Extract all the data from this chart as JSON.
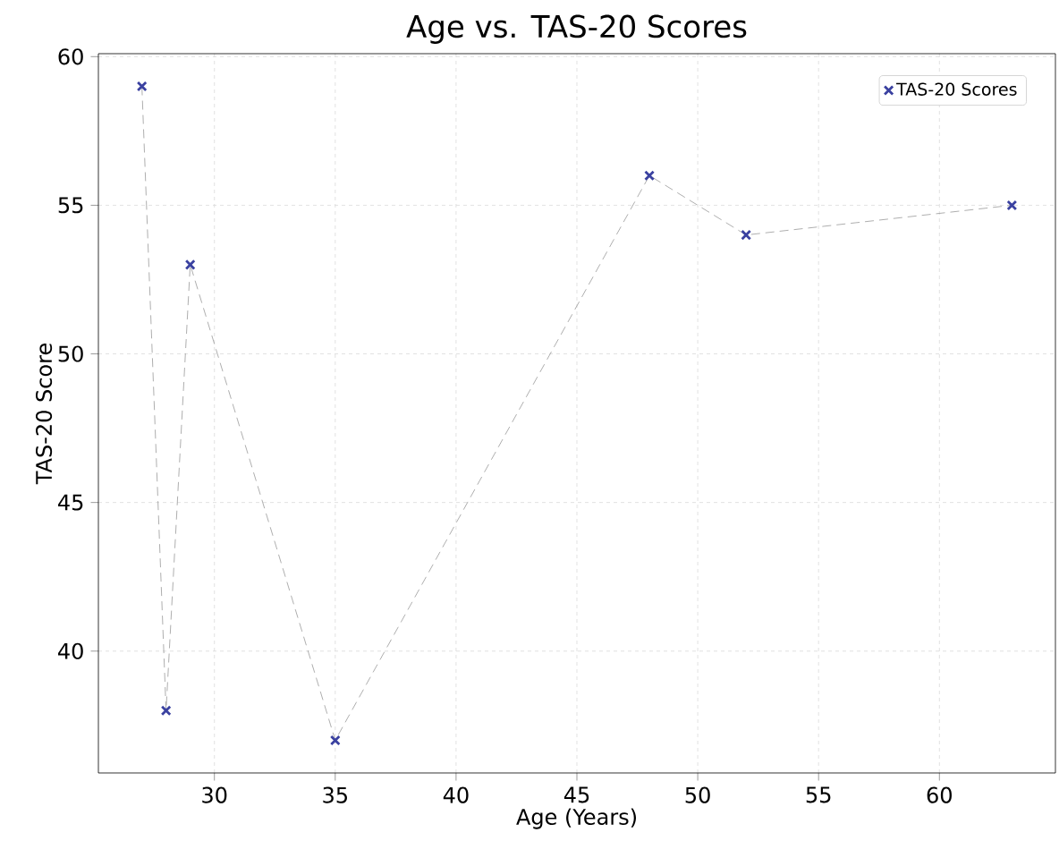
{
  "chart_data": {
    "type": "scatter",
    "title": "Age vs. TAS-20 Scores",
    "xlabel": "Age (Years)",
    "ylabel": "TAS-20 Score",
    "xlim": [
      25.2,
      64.8
    ],
    "ylim": [
      35.9,
      60.1
    ],
    "xticks": [
      30,
      35,
      40,
      45,
      50,
      55,
      60
    ],
    "yticks": [
      40,
      45,
      50,
      55,
      60
    ],
    "grid": true,
    "legend": "top right",
    "series": [
      {
        "type": "line",
        "color": "#999999",
        "line_style": "dashed",
        "marker": "none",
        "x": [
          27,
          28,
          29,
          35,
          48,
          52,
          63
        ],
        "values": [
          59,
          38,
          53,
          37,
          56,
          54,
          55
        ]
      },
      {
        "name": "TAS-20 Scores",
        "color": "#3a41a0",
        "marker": "cross",
        "x": [
          27,
          28,
          29,
          35,
          48,
          52,
          63
        ],
        "values": [
          59,
          38,
          53,
          37,
          56,
          54,
          55
        ]
      }
    ]
  }
}
